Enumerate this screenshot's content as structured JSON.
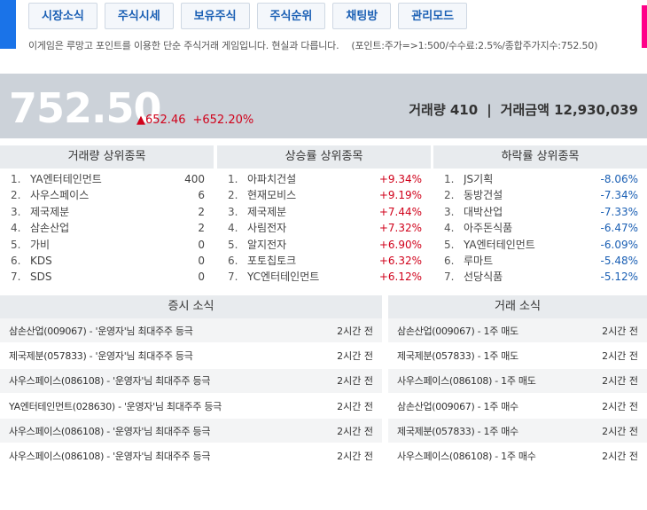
{
  "nav": [
    {
      "label": "시장소식"
    },
    {
      "label": "주식시세"
    },
    {
      "label": "보유주식"
    },
    {
      "label": "주식순위"
    },
    {
      "label": "채팅방"
    },
    {
      "label": "관리모드"
    }
  ],
  "notice": {
    "text": "이게임은 루망고 포인트를 이용한 단순 주식거래 게임입니다. 현실과 다릅니다.",
    "info": "(포인트:주가=>1:500/수수료:2.5%/종합주가지수:752.50)"
  },
  "hero": {
    "index": "752.50",
    "change": "▲652.46",
    "change_pct": "+652.20%",
    "volume_label": "거래량 410",
    "separator": "|",
    "amount_label": "거래금액 12,930,039"
  },
  "colors": {
    "accent": "#1a73e8",
    "up": "#d0021b",
    "down": "#1a5fb4",
    "pink": "#ff0088"
  },
  "volume_top": {
    "title": "거래량 상위종목",
    "items": [
      {
        "rank": "1.",
        "name": "YA엔터테인먼트",
        "value": "400"
      },
      {
        "rank": "2.",
        "name": "사우스페이스",
        "value": "6"
      },
      {
        "rank": "3.",
        "name": "제국제분",
        "value": "2"
      },
      {
        "rank": "4.",
        "name": "삼손산업",
        "value": "2"
      },
      {
        "rank": "5.",
        "name": "가비",
        "value": "0"
      },
      {
        "rank": "6.",
        "name": "KDS",
        "value": "0"
      },
      {
        "rank": "7.",
        "name": "SDS",
        "value": "0"
      }
    ]
  },
  "rise_top": {
    "title": "상승률 상위종목",
    "items": [
      {
        "rank": "1.",
        "name": "아파치건설",
        "value": "+9.34%"
      },
      {
        "rank": "2.",
        "name": "현재모비스",
        "value": "+9.19%"
      },
      {
        "rank": "3.",
        "name": "제국제분",
        "value": "+7.44%"
      },
      {
        "rank": "4.",
        "name": "사림전자",
        "value": "+7.32%"
      },
      {
        "rank": "5.",
        "name": "알지전자",
        "value": "+6.90%"
      },
      {
        "rank": "6.",
        "name": "포토칩토크",
        "value": "+6.32%"
      },
      {
        "rank": "7.",
        "name": "YC엔터테인먼트",
        "value": "+6.12%"
      }
    ]
  },
  "fall_top": {
    "title": "하락률 상위종목",
    "items": [
      {
        "rank": "1.",
        "name": "JS기획",
        "value": "-8.06%"
      },
      {
        "rank": "2.",
        "name": "동방건설",
        "value": "-7.34%"
      },
      {
        "rank": "3.",
        "name": "대박산업",
        "value": "-7.33%"
      },
      {
        "rank": "4.",
        "name": "아주돈식품",
        "value": "-6.47%"
      },
      {
        "rank": "5.",
        "name": "YA엔터테인먼트",
        "value": "-6.09%"
      },
      {
        "rank": "6.",
        "name": "루마트",
        "value": "-5.48%"
      },
      {
        "rank": "7.",
        "name": "선당식품",
        "value": "-5.12%"
      }
    ]
  },
  "market_news": {
    "title": "증시 소식",
    "items": [
      {
        "text": "삼손산업(009067) - '운영자'님 최대주주 등극",
        "time": "2시간 전"
      },
      {
        "text": "제국제분(057833) - '운영자'님 최대주주 등극",
        "time": "2시간 전"
      },
      {
        "text": "사우스페이스(086108) - '운영자'님 최대주주 등극",
        "time": "2시간 전"
      },
      {
        "text": "YA엔터테인먼트(028630) - '운영자'님 최대주주 등극",
        "time": "2시간 전"
      },
      {
        "text": "사우스페이스(086108) - '운영자'님 최대주주 등극",
        "time": "2시간 전"
      },
      {
        "text": "사우스페이스(086108) - '운영자'님 최대주주 등극",
        "time": "2시간 전"
      }
    ]
  },
  "trade_news": {
    "title": "거래 소식",
    "items": [
      {
        "text": "삼손산업(009067) - 1주 매도",
        "time": "2시간 전"
      },
      {
        "text": "제국제분(057833) - 1주 매도",
        "time": "2시간 전"
      },
      {
        "text": "사우스페이스(086108) - 1주 매도",
        "time": "2시간 전"
      },
      {
        "text": "삼손산업(009067) - 1주 매수",
        "time": "2시간 전"
      },
      {
        "text": "제국제분(057833) - 1주 매수",
        "time": "2시간 전"
      },
      {
        "text": "사우스페이스(086108) - 1주 매수",
        "time": "2시간 전"
      }
    ]
  }
}
